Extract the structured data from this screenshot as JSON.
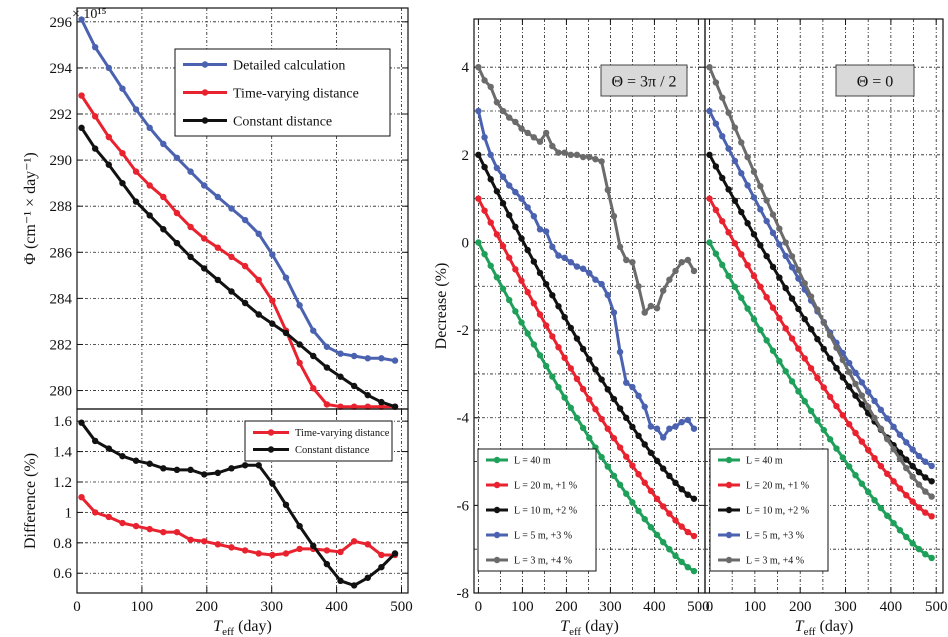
{
  "figure": {
    "exponent_label": "× 10¹⁵"
  },
  "chart_data": [
    {
      "id": "phi",
      "type": "line",
      "xlabel": "",
      "ylabel": "Φ (cm⁻¹ × day⁻¹)",
      "xlim": [
        0,
        510
      ],
      "ylim": [
        279.2,
        296.6
      ],
      "xticks": [],
      "yticks": [
        280,
        282,
        284,
        286,
        288,
        290,
        292,
        294,
        296
      ],
      "grid": true,
      "legend_position": "top-right",
      "x": [
        7,
        28,
        49,
        70,
        91,
        112,
        133,
        154,
        175,
        196,
        217,
        238,
        259,
        280,
        301,
        322,
        343,
        364,
        385,
        406,
        427,
        448,
        469,
        490
      ],
      "series": [
        {
          "name": "Detailed calculation",
          "color": "#4a62b0",
          "values": [
            296.1,
            294.9,
            294.0,
            293.1,
            292.2,
            291.4,
            290.7,
            290.1,
            289.5,
            288.9,
            288.4,
            287.9,
            287.4,
            286.8,
            285.9,
            284.9,
            283.7,
            282.6,
            281.9,
            281.6,
            281.5,
            281.4,
            281.4,
            281.3
          ]
        },
        {
          "name": "Time-varying distance",
          "color": "#e8222e",
          "values": [
            292.8,
            291.9,
            291.0,
            290.3,
            289.5,
            288.9,
            288.4,
            287.7,
            287.1,
            286.6,
            286.2,
            285.8,
            285.4,
            284.8,
            283.9,
            282.6,
            281.2,
            280.1,
            279.4,
            279.3,
            279.3,
            279.3,
            279.3,
            279.3
          ]
        },
        {
          "name": "Constant distance",
          "color": "#111111",
          "values": [
            291.4,
            290.5,
            289.8,
            289.0,
            288.2,
            287.6,
            287.0,
            286.4,
            285.8,
            285.3,
            284.8,
            284.3,
            283.8,
            283.3,
            282.9,
            282.5,
            282.0,
            281.5,
            281.0,
            280.6,
            280.2,
            279.8,
            279.5,
            279.3
          ]
        }
      ]
    },
    {
      "id": "difference",
      "type": "line",
      "xlabel": "T_eff (day)",
      "ylabel": "Difference (%)",
      "xlim": [
        0,
        510
      ],
      "ylim": [
        0.47,
        1.68
      ],
      "xticks": [
        0,
        100,
        200,
        300,
        400,
        500
      ],
      "yticks": [
        0.6,
        0.8,
        1.0,
        1.2,
        1.4,
        1.6
      ],
      "ytick_labels": [
        "0.6",
        "0.8",
        "1",
        "1.2",
        "1.4",
        "1.6"
      ],
      "grid": true,
      "legend_position": "top-right",
      "x": [
        7,
        28,
        49,
        70,
        91,
        112,
        133,
        154,
        175,
        196,
        217,
        238,
        259,
        280,
        301,
        322,
        343,
        364,
        385,
        406,
        427,
        448,
        469,
        490
      ],
      "series": [
        {
          "name": "Time-varying distance",
          "color": "#e8222e",
          "values": [
            1.1,
            1.0,
            0.97,
            0.93,
            0.91,
            0.89,
            0.87,
            0.87,
            0.82,
            0.81,
            0.79,
            0.77,
            0.75,
            0.73,
            0.72,
            0.73,
            0.76,
            0.76,
            0.75,
            0.74,
            0.81,
            0.79,
            0.72,
            0.72
          ]
        },
        {
          "name": "Constant distance",
          "color": "#111111",
          "values": [
            1.59,
            1.47,
            1.42,
            1.37,
            1.34,
            1.32,
            1.29,
            1.28,
            1.28,
            1.25,
            1.26,
            1.29,
            1.31,
            1.31,
            1.19,
            1.05,
            0.91,
            0.78,
            0.66,
            0.55,
            0.52,
            0.57,
            0.64,
            0.73
          ]
        }
      ]
    },
    {
      "id": "decrease-3pi2",
      "type": "line",
      "annotation": "Θ = 3π / 2",
      "xlabel": "T_eff (day)",
      "ylabel": "Decrease (%)",
      "xlim": [
        -10,
        515
      ],
      "ylim": [
        -8,
        5.1
      ],
      "xticks": [
        0,
        100,
        200,
        300,
        400,
        500
      ],
      "yticks": [
        -8,
        -6,
        -4,
        -2,
        0,
        2,
        4
      ],
      "grid": true,
      "legend_position": "bottom-left",
      "series": [
        {
          "name": "L = 40 m",
          "color": "#1fa05a",
          "x": [
            0,
            490
          ],
          "shape": "curve",
          "start": 0.0,
          "end": -7.5
        },
        {
          "name": "L = 20 m, +1 %",
          "color": "#e8222e",
          "x": [
            0,
            490
          ],
          "shape": "curve",
          "start": 1.0,
          "end": -6.7
        },
        {
          "name": "L = 10 m, +2 %",
          "color": "#111111",
          "x": [
            0,
            490
          ],
          "shape": "curve",
          "start": 2.0,
          "end": -5.85
        },
        {
          "name": "L = 5 m, +3 %",
          "color": "#4a62b0",
          "x": [
            0,
            14,
            28,
            42,
            56,
            70,
            84,
            98,
            112,
            126,
            140,
            154,
            168,
            182,
            196,
            210,
            224,
            238,
            252,
            266,
            280,
            294,
            308,
            322,
            336,
            350,
            364,
            378,
            392,
            406,
            420,
            434,
            448,
            462,
            476,
            490
          ],
          "values": [
            3.0,
            2.4,
            2.0,
            1.7,
            1.5,
            1.3,
            1.15,
            1.0,
            0.8,
            0.6,
            0.3,
            0.25,
            -0.1,
            -0.3,
            -0.35,
            -0.45,
            -0.55,
            -0.6,
            -0.7,
            -0.85,
            -0.95,
            -1.2,
            -1.6,
            -2.5,
            -3.2,
            -3.3,
            -3.5,
            -3.75,
            -4.2,
            -4.25,
            -4.45,
            -4.25,
            -4.2,
            -4.1,
            -4.05,
            -4.25
          ]
        },
        {
          "name": "L = 3 m, +4 %",
          "color": "#6b6b6b",
          "x": [
            0,
            14,
            28,
            42,
            56,
            70,
            84,
            98,
            112,
            126,
            140,
            154,
            168,
            182,
            196,
            210,
            224,
            238,
            252,
            266,
            280,
            294,
            308,
            322,
            336,
            350,
            364,
            378,
            392,
            406,
            420,
            434,
            448,
            462,
            476,
            490
          ],
          "values": [
            4.0,
            3.7,
            3.55,
            3.2,
            3.0,
            2.85,
            2.75,
            2.6,
            2.5,
            2.4,
            2.3,
            2.5,
            2.2,
            2.05,
            2.05,
            2.0,
            2.0,
            1.95,
            1.95,
            1.9,
            1.85,
            1.2,
            0.6,
            -0.1,
            -0.4,
            -0.45,
            -1.0,
            -1.6,
            -1.45,
            -1.5,
            -1.1,
            -0.85,
            -0.65,
            -0.45,
            -0.4,
            -0.65
          ]
        }
      ]
    },
    {
      "id": "decrease-0",
      "type": "line",
      "annotation": "Θ = 0",
      "xlabel": "T_eff (day)",
      "ylabel": "",
      "xlim": [
        -10,
        515
      ],
      "ylim": [
        -8,
        5.1
      ],
      "xticks": [
        0,
        100,
        200,
        300,
        400,
        500
      ],
      "yticks": [],
      "grid": true,
      "legend_position": "bottom-left",
      "series": [
        {
          "name": "L = 40 m",
          "color": "#1fa05a",
          "x": [
            0,
            490
          ],
          "shape": "curve",
          "start": 0.0,
          "end": -7.2
        },
        {
          "name": "L = 20 m, +1 %",
          "color": "#e8222e",
          "x": [
            0,
            490
          ],
          "shape": "curve",
          "start": 1.0,
          "end": -6.25
        },
        {
          "name": "L = 10 m, +2 %",
          "color": "#111111",
          "x": [
            0,
            490
          ],
          "shape": "curve",
          "start": 2.0,
          "end": -5.45
        },
        {
          "name": "L = 5 m, +3 %",
          "color": "#4a62b0",
          "x": [
            0,
            490
          ],
          "shape": "curve",
          "start": 3.0,
          "end": -5.1
        },
        {
          "name": "L = 3 m, +4 %",
          "color": "#6b6b6b",
          "x": [
            0,
            490
          ],
          "shape": "curve",
          "start": 4.0,
          "end": -5.8
        }
      ]
    }
  ]
}
